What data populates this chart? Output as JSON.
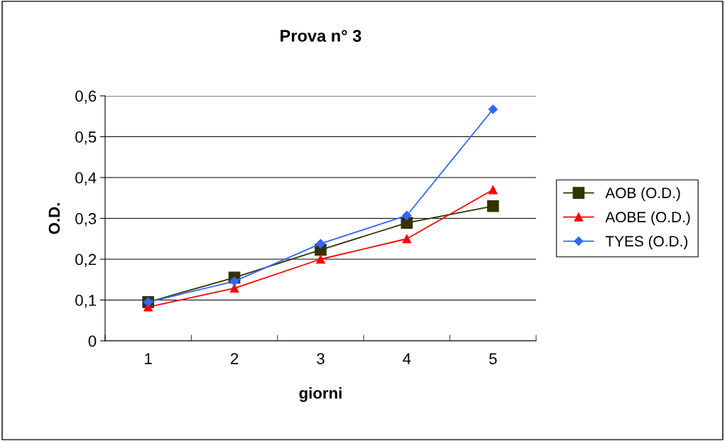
{
  "chart_data": {
    "type": "line",
    "title": "Prova n° 3",
    "xlabel": "giorni",
    "ylabel": "O.D.",
    "categories": [
      "1",
      "2",
      "3",
      "4",
      "5"
    ],
    "series": [
      {
        "name": "AOB (O.D.)",
        "color": "#333300",
        "marker": "square",
        "values": [
          0.095,
          0.155,
          0.223,
          0.289,
          0.33
        ]
      },
      {
        "name": "AOBE (O.D.)",
        "color": "#ff0000",
        "marker": "triangle",
        "values": [
          0.083,
          0.129,
          0.2,
          0.25,
          0.37
        ]
      },
      {
        "name": "TYES (O.D.)",
        "color": "#3366ff",
        "marker": "diamond",
        "values": [
          0.095,
          0.146,
          0.238,
          0.307,
          0.567
        ]
      }
    ],
    "ylim": [
      0,
      0.6
    ],
    "yticks": [
      {
        "value": 0,
        "label": "0"
      },
      {
        "value": 0.1,
        "label": "0,1"
      },
      {
        "value": 0.2,
        "label": "0,2"
      },
      {
        "value": 0.3,
        "label": "0,3"
      },
      {
        "value": 0.4,
        "label": "0,4"
      },
      {
        "value": 0.5,
        "label": "0,5"
      },
      {
        "value": 0.6,
        "label": "0,6"
      }
    ],
    "grid": "y",
    "legend": "right",
    "line_style": "solid"
  }
}
